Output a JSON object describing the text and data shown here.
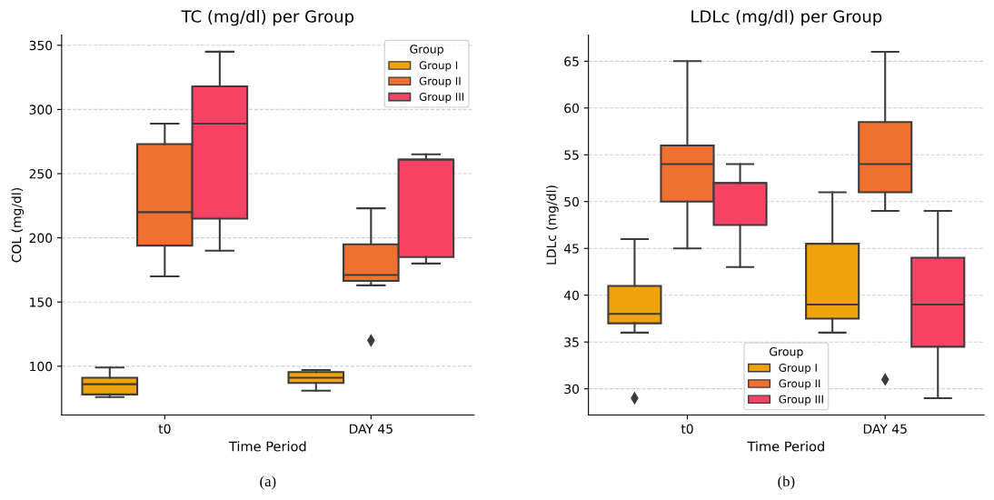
{
  "chart_data": [
    {
      "type": "box",
      "title": "TC (mg/dl) per Group",
      "xlabel": "Time Period",
      "ylabel": "COL (mg/dl)",
      "categories": [
        "t0",
        "DAY 45"
      ],
      "ylim": [
        62,
        358
      ],
      "yticks": [
        100,
        150,
        200,
        250,
        300,
        350
      ],
      "grid": "y",
      "legend": "top right",
      "legend_title": "Group",
      "annotations": [
        "(a)"
      ],
      "series": [
        {
          "name": "Group I",
          "color": "#f0a30a",
          "boxes": [
            {
              "low": 76,
              "q1": 78,
              "median": 86,
              "q3": 91,
              "high": 99
            },
            {
              "low": 81,
              "q1": 87,
              "median": 91,
              "q3": 95.5,
              "high": 97
            }
          ]
        },
        {
          "name": "Group II",
          "color": "#f07030",
          "boxes": [
            {
              "low": 170,
              "q1": 194,
              "median": 220,
              "q3": 273,
              "high": 289
            },
            {
              "low": 163,
              "q1": 166.5,
              "median": 171,
              "q3": 195,
              "high": 223,
              "outliers": [
                120
              ]
            }
          ]
        },
        {
          "name": "Group III",
          "color": "#fa4264",
          "boxes": [
            {
              "low": 190,
              "q1": 215,
              "median": 289,
              "q3": 318,
              "high": 345
            },
            {
              "low": 180,
              "q1": 185,
              "median": 261,
              "q3": 261,
              "high": 265
            }
          ]
        }
      ]
    },
    {
      "type": "box",
      "title": "LDLc (mg/dl) per Group",
      "xlabel": "Time Period",
      "ylabel": "LDLc (mg/dl)",
      "categories": [
        "t0",
        "DAY 45"
      ],
      "ylim": [
        27.2,
        67.8
      ],
      "yticks": [
        30,
        35,
        40,
        45,
        50,
        55,
        60,
        65
      ],
      "grid": "y",
      "legend": "bottom",
      "legend_title": "Group",
      "annotations": [
        "(b)"
      ],
      "series": [
        {
          "name": "Group I",
          "color": "#f0a30a",
          "boxes": [
            {
              "low": 36,
              "q1": 37,
              "median": 38,
              "q3": 41,
              "high": 46,
              "outliers": [
                29
              ]
            },
            {
              "low": 36,
              "q1": 37.5,
              "median": 39,
              "q3": 45.5,
              "high": 51
            }
          ]
        },
        {
          "name": "Group II",
          "color": "#f07030",
          "boxes": [
            {
              "low": 45,
              "q1": 50,
              "median": 54,
              "q3": 56,
              "high": 65
            },
            {
              "low": 49,
              "q1": 51,
              "median": 54,
              "q3": 58.5,
              "high": 66,
              "outliers": [
                31
              ]
            }
          ]
        },
        {
          "name": "Group III",
          "color": "#fa4264",
          "boxes": [
            {
              "low": 43,
              "q1": 47.5,
              "median": 52,
              "q3": 52,
              "high": 54
            },
            {
              "low": 29,
              "q1": 34.5,
              "median": 39,
              "q3": 44,
              "high": 49
            }
          ]
        }
      ]
    }
  ]
}
